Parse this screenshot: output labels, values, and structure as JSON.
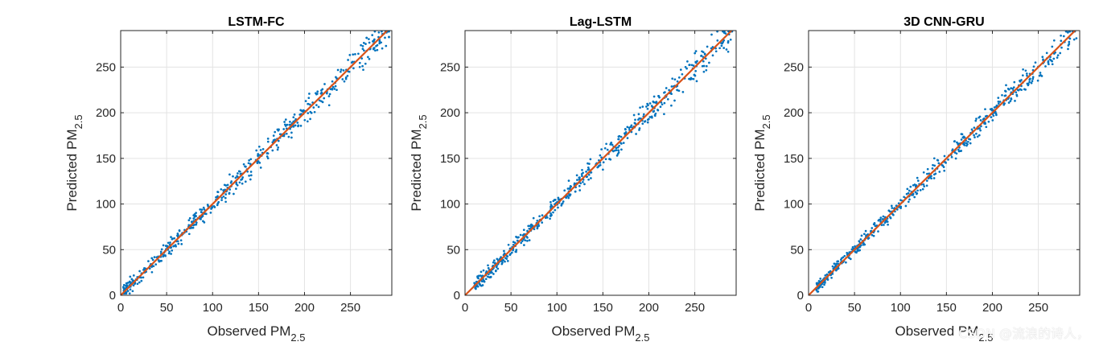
{
  "chart_data": [
    {
      "type": "scatter",
      "title": "LSTM-FC",
      "xlabel": "Observed PM",
      "xlabel_sub": "2.5",
      "ylabel": "Predicted PM",
      "ylabel_sub": "2.5",
      "xlim": [
        0,
        295
      ],
      "ylim": [
        0,
        290
      ],
      "xticks": [
        0,
        50,
        100,
        150,
        200,
        250
      ],
      "yticks": [
        0,
        50,
        100,
        150,
        200,
        250
      ],
      "grid": true,
      "series": [
        {
          "kind": "points",
          "color": "#0072BD",
          "seed": 11,
          "n": 520,
          "xmin": 2,
          "xmax": 292,
          "spread": 5.5
        },
        {
          "kind": "fit_line",
          "color": "#D95319",
          "x": [
            0,
            295
          ],
          "y": [
            0,
            295
          ]
        }
      ]
    },
    {
      "type": "scatter",
      "title": "Lag-LSTM",
      "xlabel": "Observed PM",
      "xlabel_sub": "2.5",
      "ylabel": "Predicted PM",
      "ylabel_sub": "2.5",
      "xlim": [
        0,
        295
      ],
      "ylim": [
        0,
        290
      ],
      "xticks": [
        0,
        50,
        100,
        150,
        200,
        250
      ],
      "yticks": [
        0,
        50,
        100,
        150,
        200,
        250
      ],
      "grid": true,
      "series": [
        {
          "kind": "points",
          "color": "#0072BD",
          "seed": 23,
          "n": 520,
          "xmin": 10,
          "xmax": 292,
          "spread": 5.5
        },
        {
          "kind": "fit_line",
          "color": "#D95319",
          "x": [
            0,
            295
          ],
          "y": [
            0,
            295
          ]
        }
      ]
    },
    {
      "type": "scatter",
      "title": "3D CNN-GRU",
      "xlabel": "Observed PM",
      "xlabel_sub": "2.5",
      "ylabel": "Predicted PM",
      "ylabel_sub": "2.5",
      "xlim": [
        0,
        295
      ],
      "ylim": [
        0,
        290
      ],
      "xticks": [
        0,
        50,
        100,
        150,
        200,
        250
      ],
      "yticks": [
        0,
        50,
        100,
        150,
        200,
        250
      ],
      "grid": true,
      "series": [
        {
          "kind": "points",
          "color": "#0072BD",
          "seed": 37,
          "n": 520,
          "xmin": 8,
          "xmax": 292,
          "spread": 4.5
        },
        {
          "kind": "fit_line",
          "color": "#D95319",
          "x": [
            0,
            295
          ],
          "y": [
            0,
            295
          ]
        }
      ]
    }
  ],
  "watermark": "CSDN @流浪的诗人，"
}
